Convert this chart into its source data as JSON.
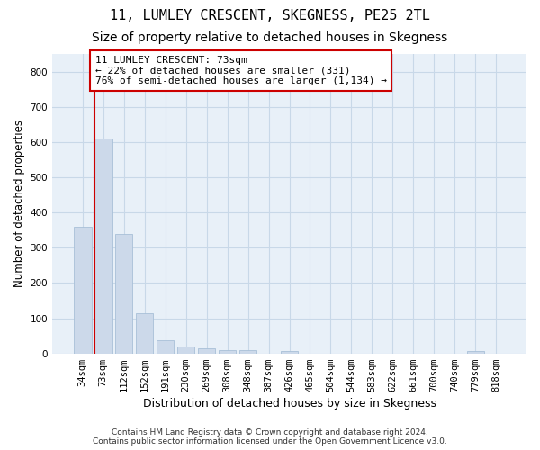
{
  "title": "11, LUMLEY CRESCENT, SKEGNESS, PE25 2TL",
  "subtitle": "Size of property relative to detached houses in Skegness",
  "xlabel": "Distribution of detached houses by size in Skegness",
  "ylabel": "Number of detached properties",
  "footer_line1": "Contains HM Land Registry data © Crown copyright and database right 2024.",
  "footer_line2": "Contains public sector information licensed under the Open Government Licence v3.0.",
  "bar_labels": [
    "34sqm",
    "73sqm",
    "112sqm",
    "152sqm",
    "191sqm",
    "230sqm",
    "269sqm",
    "308sqm",
    "348sqm",
    "387sqm",
    "426sqm",
    "465sqm",
    "504sqm",
    "544sqm",
    "583sqm",
    "622sqm",
    "661sqm",
    "700sqm",
    "740sqm",
    "779sqm",
    "818sqm"
  ],
  "bar_values": [
    360,
    610,
    340,
    115,
    38,
    20,
    15,
    10,
    10,
    0,
    8,
    0,
    0,
    0,
    0,
    0,
    0,
    0,
    0,
    8,
    0
  ],
  "bar_color": "#ccd9ea",
  "bar_edge_color": "#a8c0d8",
  "highlight_index": 1,
  "highlight_line_color": "#cc0000",
  "annotation_text": "11 LUMLEY CRESCENT: 73sqm\n← 22% of detached houses are smaller (331)\n76% of semi-detached houses are larger (1,134) →",
  "annotation_box_color": "#ffffff",
  "annotation_box_edge_color": "#cc0000",
  "ylim": [
    0,
    850
  ],
  "yticks": [
    0,
    100,
    200,
    300,
    400,
    500,
    600,
    700,
    800
  ],
  "grid_color": "#c8d8e8",
  "background_color": "#e8f0f8",
  "title_fontsize": 11,
  "subtitle_fontsize": 10,
  "tick_fontsize": 7.5,
  "ylabel_fontsize": 8.5,
  "xlabel_fontsize": 9
}
